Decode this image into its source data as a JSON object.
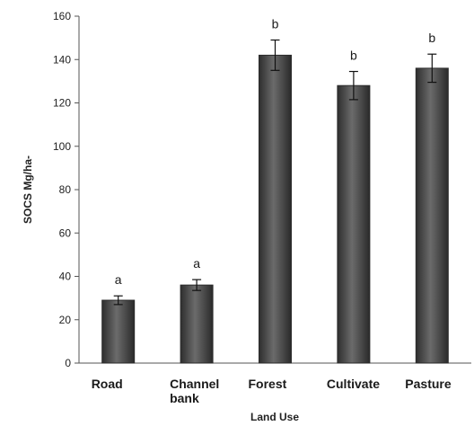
{
  "chart_data": {
    "type": "bar",
    "title": "",
    "xlabel": "Land Use",
    "ylabel": "SOCS Mg/ha-",
    "ylim": [
      0,
      160
    ],
    "yticks": [
      0,
      20,
      40,
      60,
      80,
      100,
      120,
      140,
      160
    ],
    "grid": false,
    "legend": "none",
    "categories": [
      {
        "lines": [
          "Road"
        ]
      },
      {
        "lines": [
          "Channel",
          "bank"
        ]
      },
      {
        "lines": [
          "Forest"
        ]
      },
      {
        "lines": [
          "Cultivate"
        ]
      },
      {
        "lines": [
          "Pasture"
        ]
      }
    ],
    "values": [
      29,
      36,
      142,
      128,
      136
    ],
    "error": [
      2,
      2.5,
      7,
      6.5,
      6.5
    ],
    "significance": [
      "a",
      "a",
      "b",
      "b",
      "b"
    ],
    "bar_color": "#4a4a4a"
  }
}
